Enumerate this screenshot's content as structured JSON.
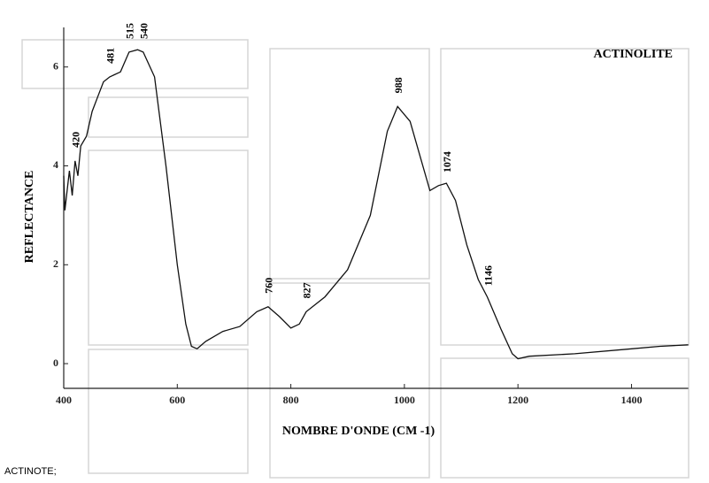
{
  "chart_data": {
    "type": "line",
    "title": "ACTINOLITE",
    "x_label": "NOMBRE D'ONDE (CM -1)",
    "y_label": "REFLECTANCE",
    "caption": "ACTINOTE;",
    "x": [
      400,
      402,
      410,
      415,
      420,
      425,
      430,
      440,
      450,
      460,
      470,
      481,
      500,
      515,
      530,
      540,
      560,
      580,
      600,
      615,
      625,
      635,
      650,
      680,
      710,
      740,
      760,
      780,
      800,
      815,
      827,
      860,
      900,
      940,
      970,
      988,
      1010,
      1030,
      1045,
      1060,
      1074,
      1090,
      1110,
      1130,
      1146,
      1170,
      1190,
      1200,
      1220,
      1300,
      1400,
      1450,
      1500
    ],
    "series": [
      {
        "name": "ACTINOLITE",
        "color": "#111111",
        "values": [
          3.8,
          3.1,
          3.9,
          3.4,
          4.1,
          3.8,
          4.4,
          4.6,
          5.1,
          5.4,
          5.7,
          5.8,
          5.9,
          6.3,
          6.35,
          6.3,
          5.8,
          4.0,
          2.0,
          0.8,
          0.35,
          0.3,
          0.45,
          0.65,
          0.75,
          1.05,
          1.15,
          0.95,
          0.72,
          0.8,
          1.05,
          1.35,
          1.9,
          3.0,
          4.7,
          5.2,
          4.9,
          4.1,
          3.5,
          3.6,
          3.65,
          3.3,
          2.4,
          1.7,
          1.35,
          0.7,
          0.2,
          0.1,
          0.15,
          0.2,
          0.3,
          0.35,
          0.38
        ]
      }
    ],
    "peaks": [
      420,
      481,
      515,
      540,
      760,
      827,
      988,
      1074,
      1146
    ],
    "xlim": [
      400,
      1500
    ],
    "ylim": [
      -0.5,
      6.8
    ],
    "xticks": [
      400,
      600,
      800,
      1000,
      1200,
      1400
    ],
    "yticks": [
      0,
      2,
      4,
      6
    ]
  }
}
